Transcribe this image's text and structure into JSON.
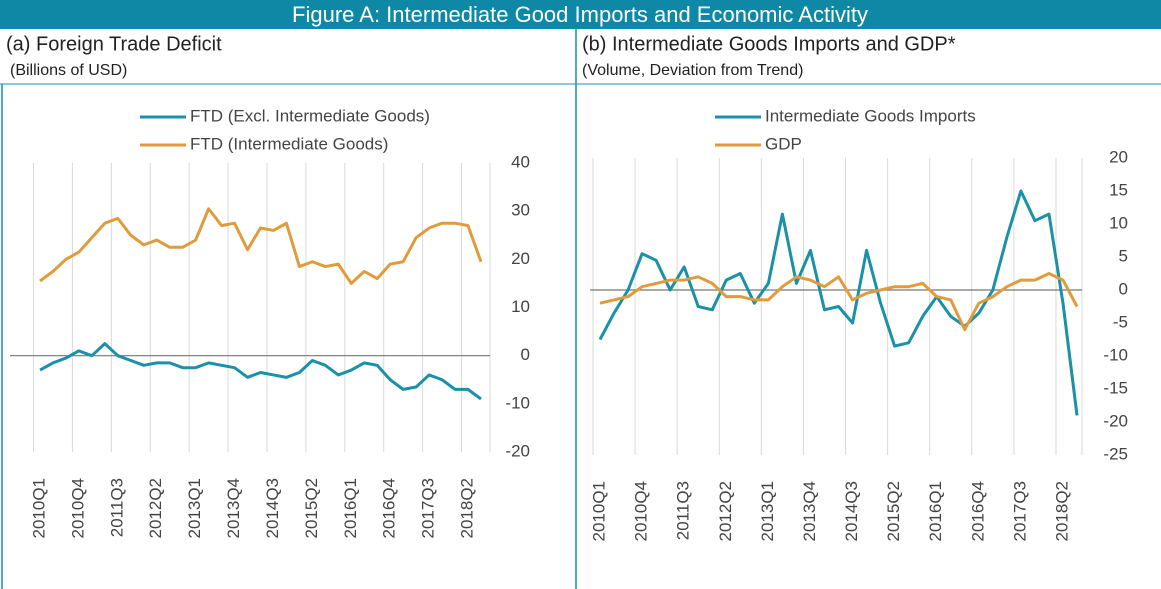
{
  "title": "Figure A: Intermediate Good Imports and Economic Activity",
  "chart_data": [
    {
      "type": "line",
      "title": "(a) Foreign Trade Deficit",
      "subtitle": "(Billions of USD)",
      "categories": [
        "2010Q1",
        null,
        null,
        "2010Q4",
        null,
        null,
        "2011Q3",
        null,
        null,
        "2012Q2",
        null,
        null,
        "2013Q1",
        null,
        null,
        "2013Q4",
        null,
        null,
        "2014Q3",
        null,
        null,
        "2015Q2",
        null,
        null,
        "2016Q1",
        null,
        null,
        "2016Q4",
        null,
        null,
        "2017Q3",
        null,
        null,
        "2018Q2",
        null
      ],
      "series": [
        {
          "name": "FTD (Excl. Intermediate Goods)",
          "color": "#1a91a8",
          "values": [
            -3,
            -1.5,
            -0.5,
            1,
            0,
            2.5,
            0,
            -1,
            -2,
            -1.5,
            -1.5,
            -2.5,
            -2.5,
            -1.5,
            -2,
            -2.5,
            -4.5,
            -3.5,
            -4,
            -4.5,
            -3.5,
            -1,
            -2,
            -4,
            -3,
            -1.5,
            -2,
            -5,
            -7,
            -6.5,
            -4,
            -5,
            -7,
            -7,
            -9
          ]
        },
        {
          "name": "FTD (Intermediate Goods)",
          "color": "#e09c3c",
          "values": [
            15.5,
            17.5,
            20,
            21.5,
            24.5,
            27.5,
            28.5,
            25,
            23,
            24,
            22.5,
            22.5,
            24,
            30.5,
            27,
            27.5,
            22,
            26.5,
            26,
            27.5,
            18.5,
            19.5,
            18.5,
            19,
            15,
            17.5,
            16,
            19,
            19.5,
            24.5,
            26.5,
            27.5,
            27.5,
            27,
            19.5
          ]
        }
      ],
      "ylim": [
        -20,
        40
      ],
      "yticks": [
        -20,
        -10,
        0,
        10,
        20,
        30,
        40
      ]
    },
    {
      "type": "line",
      "title": "(b) Intermediate Goods Imports and GDP*",
      "subtitle": "(Volume, Deviation from Trend)",
      "categories": [
        "2010Q1",
        null,
        null,
        "2010Q4",
        null,
        null,
        "2011Q3",
        null,
        null,
        "2012Q2",
        null,
        null,
        "2013Q1",
        null,
        null,
        "2013Q4",
        null,
        null,
        "2014Q3",
        null,
        null,
        "2015Q2",
        null,
        null,
        "2016Q1",
        null,
        null,
        "2016Q4",
        null,
        null,
        "2017Q3",
        null,
        null,
        "2018Q2",
        null
      ],
      "series": [
        {
          "name": "Intermediate Goods Imports",
          "color": "#1a91a8",
          "values": [
            -7.5,
            -3.5,
            0,
            5.5,
            4.5,
            0,
            3.5,
            -2.5,
            -3,
            1.5,
            2.5,
            -2,
            1,
            11.5,
            1,
            6,
            -3,
            -2.5,
            -5,
            6,
            -2,
            -8.5,
            -8,
            -4,
            -1,
            -4,
            -5.5,
            -3.5,
            0,
            8,
            15,
            10.5,
            11.5,
            -2,
            -19
          ]
        },
        {
          "name": "GDP",
          "color": "#e09c3c",
          "values": [
            -2,
            -1.5,
            -1,
            0.5,
            1,
            1.5,
            1.5,
            2,
            1,
            -1,
            -1,
            -1.5,
            -1.5,
            0.5,
            2,
            1.5,
            0.5,
            2,
            -1.5,
            -0.5,
            0,
            0.5,
            0.5,
            1,
            -1,
            -1.5,
            -6,
            -2,
            -1,
            0.5,
            1.5,
            1.5,
            2.5,
            1.5,
            -2.5
          ]
        }
      ],
      "ylim": [
        -25,
        20
      ],
      "yticks": [
        -25,
        -20,
        -15,
        -10,
        -5,
        0,
        5,
        10,
        15,
        20
      ]
    }
  ]
}
